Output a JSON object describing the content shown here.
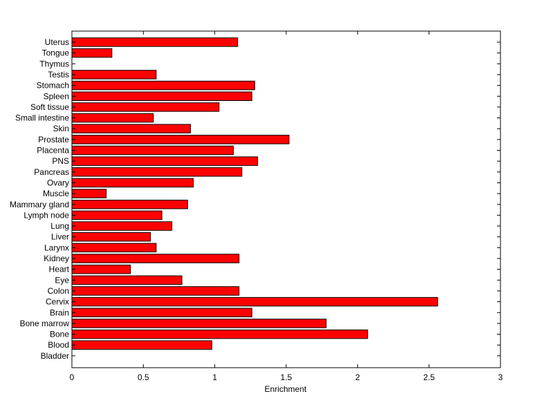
{
  "chart_data": {
    "type": "bar",
    "orientation": "horizontal",
    "title": "",
    "xlabel": "Enrichment",
    "ylabel": "",
    "xlim": [
      0,
      3
    ],
    "xticks": [
      "0",
      "0.5",
      "1",
      "1.5",
      "2",
      "2.5",
      "3"
    ],
    "grid": false,
    "bar_color": "#ff0000",
    "bar_edge_color": "#000000",
    "categories": [
      "Uterus",
      "Tongue",
      "Thymus",
      "Testis",
      "Stomach",
      "Spleen",
      "Soft tissue",
      "Small intestine",
      "Skin",
      "Prostate",
      "Placenta",
      "PNS",
      "Pancreas",
      "Ovary",
      "Muscle",
      "Mammary gland",
      "Lymph node",
      "Lung",
      "Liver",
      "Larynx",
      "Kidney",
      "Heart",
      "Eye",
      "Colon",
      "Cervix",
      "Brain",
      "Bone marrow",
      "Bone",
      "Blood",
      "Bladder"
    ],
    "values": [
      1.16,
      0.28,
      0,
      0.59,
      1.28,
      1.26,
      1.03,
      0.57,
      0.83,
      1.52,
      1.13,
      1.3,
      1.19,
      0.85,
      0.24,
      0.81,
      0.63,
      0.7,
      0.55,
      0.59,
      1.17,
      0.41,
      0.77,
      1.17,
      2.56,
      1.26,
      1.78,
      2.07,
      0.98,
      0
    ]
  }
}
